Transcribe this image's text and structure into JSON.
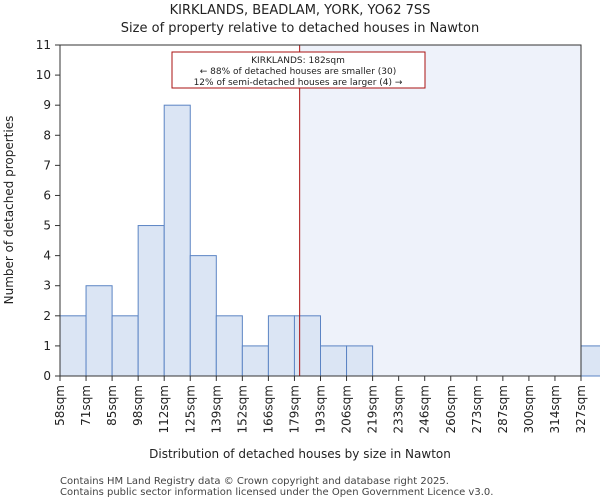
{
  "chart_data": {
    "type": "bar",
    "title": "KIRKLANDS, BEADLAM, YORK, YO62 7SS",
    "subtitle": "Size of property relative to detached houses in Nawton",
    "xlabel": "Distribution of detached houses by size in Nawton",
    "ylabel": "Number of detached properties",
    "categories": [
      "58sqm",
      "71sqm",
      "85sqm",
      "98sqm",
      "112sqm",
      "125sqm",
      "139sqm",
      "152sqm",
      "166sqm",
      "179sqm",
      "193sqm",
      "206sqm",
      "219sqm",
      "233sqm",
      "246sqm",
      "260sqm",
      "273sqm",
      "287sqm",
      "300sqm",
      "314sqm",
      "327sqm"
    ],
    "values": [
      2,
      3,
      2,
      5,
      9,
      4,
      2,
      1,
      2,
      2,
      1,
      1,
      0,
      0,
      0,
      0,
      0,
      0,
      0,
      0,
      1
    ],
    "ylim": [
      0,
      11
    ],
    "yticks": [
      "0",
      "1",
      "2",
      "3",
      "4",
      "5",
      "6",
      "7",
      "8",
      "9",
      "10",
      "11"
    ],
    "marker": {
      "value_bin": 9.2,
      "line1": "KIRKLANDS: 182sqm",
      "line2": "← 88% of detached houses are smaller (30)",
      "line3": "12% of semi-detached houses are larger (4) →"
    },
    "colors": {
      "bar_fill": "#dbe5f4",
      "bar_stroke": "#5b84c4",
      "marker": "#aa1111",
      "shade": "#eef2fa"
    },
    "footer": [
      "Contains HM Land Registry data © Crown copyright and database right 2025.",
      "Contains public sector information licensed under the Open Government Licence v3.0."
    ]
  }
}
